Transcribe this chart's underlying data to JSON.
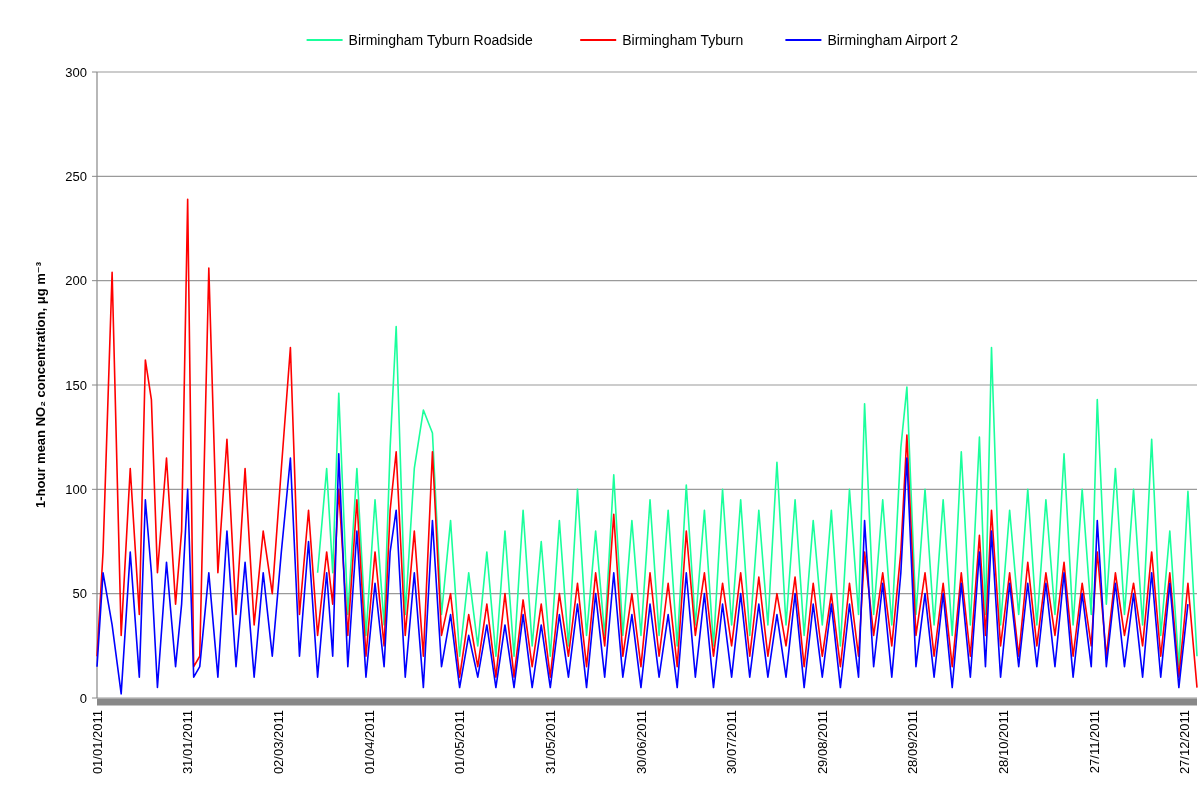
{
  "chart_data": {
    "type": "line",
    "ylabel": "1-hour mean NO₂ concentration, μg m⁻³",
    "x": [
      "2011-01-01",
      "2011-01-03",
      "2011-01-06",
      "2011-01-09",
      "2011-01-12",
      "2011-01-15",
      "2011-01-17",
      "2011-01-19",
      "2011-01-21",
      "2011-01-24",
      "2011-01-27",
      "2011-01-29",
      "2011-01-31",
      "2011-02-02",
      "2011-02-04",
      "2011-02-07",
      "2011-02-10",
      "2011-02-13",
      "2011-02-16",
      "2011-02-19",
      "2011-02-22",
      "2011-02-25",
      "2011-02-28",
      "2011-03-03",
      "2011-03-06",
      "2011-03-09",
      "2011-03-12",
      "2011-03-15",
      "2011-03-18",
      "2011-03-20",
      "2011-03-22",
      "2011-03-25",
      "2011-03-28",
      "2011-03-31",
      "2011-04-03",
      "2011-04-06",
      "2011-04-08",
      "2011-04-10",
      "2011-04-13",
      "2011-04-16",
      "2011-04-19",
      "2011-04-22",
      "2011-04-25",
      "2011-04-28",
      "2011-05-01",
      "2011-05-04",
      "2011-05-07",
      "2011-05-10",
      "2011-05-13",
      "2011-05-16",
      "2011-05-19",
      "2011-05-22",
      "2011-05-25",
      "2011-05-28",
      "2011-05-31",
      "2011-06-03",
      "2011-06-06",
      "2011-06-09",
      "2011-06-12",
      "2011-06-15",
      "2011-06-18",
      "2011-06-21",
      "2011-06-24",
      "2011-06-27",
      "2011-06-30",
      "2011-07-03",
      "2011-07-06",
      "2011-07-09",
      "2011-07-12",
      "2011-07-15",
      "2011-07-18",
      "2011-07-21",
      "2011-07-24",
      "2011-07-27",
      "2011-07-30",
      "2011-08-02",
      "2011-08-05",
      "2011-08-08",
      "2011-08-11",
      "2011-08-14",
      "2011-08-17",
      "2011-08-20",
      "2011-08-23",
      "2011-08-26",
      "2011-08-29",
      "2011-09-01",
      "2011-09-04",
      "2011-09-07",
      "2011-09-10",
      "2011-09-12",
      "2011-09-15",
      "2011-09-18",
      "2011-09-21",
      "2011-09-24",
      "2011-09-26",
      "2011-09-29",
      "2011-10-02",
      "2011-10-05",
      "2011-10-08",
      "2011-10-11",
      "2011-10-14",
      "2011-10-17",
      "2011-10-20",
      "2011-10-22",
      "2011-10-24",
      "2011-10-27",
      "2011-10-30",
      "2011-11-02",
      "2011-11-05",
      "2011-11-08",
      "2011-11-11",
      "2011-11-14",
      "2011-11-17",
      "2011-11-20",
      "2011-11-23",
      "2011-11-26",
      "2011-11-28",
      "2011-12-01",
      "2011-12-04",
      "2011-12-07",
      "2011-12-10",
      "2011-12-13",
      "2011-12-16",
      "2011-12-19",
      "2011-12-22",
      "2011-12-25",
      "2011-12-28",
      "2011-12-31"
    ],
    "series": [
      {
        "name": "Birmingham Tyburn Roadside",
        "color": "#1aff9c",
        "values": [
          null,
          null,
          null,
          null,
          null,
          null,
          null,
          null,
          null,
          null,
          null,
          null,
          null,
          null,
          null,
          null,
          null,
          null,
          null,
          null,
          null,
          null,
          null,
          null,
          null,
          null,
          null,
          60,
          110,
          60,
          146,
          40,
          110,
          30,
          95,
          35,
          120,
          178,
          40,
          110,
          138,
          127,
          40,
          85,
          20,
          60,
          25,
          70,
          20,
          80,
          20,
          90,
          25,
          75,
          20,
          85,
          25,
          100,
          30,
          80,
          30,
          107,
          30,
          85,
          30,
          95,
          30,
          90,
          25,
          102,
          35,
          90,
          25,
          100,
          35,
          95,
          30,
          90,
          35,
          113,
          35,
          95,
          30,
          85,
          35,
          90,
          25,
          100,
          40,
          141,
          40,
          95,
          35,
          120,
          149,
          40,
          100,
          35,
          95,
          30,
          118,
          35,
          125,
          40,
          168,
          35,
          90,
          40,
          100,
          35,
          95,
          40,
          117,
          35,
          100,
          40,
          143,
          45,
          110,
          40,
          100,
          35,
          124,
          30,
          80,
          15,
          99,
          20
        ]
      },
      {
        "name": "Birmingham Tyburn",
        "color": "#ff0000",
        "values": [
          20,
          70,
          204,
          30,
          110,
          40,
          162,
          143,
          60,
          115,
          45,
          80,
          239,
          15,
          20,
          206,
          60,
          124,
          40,
          110,
          35,
          80,
          50,
          110,
          168,
          40,
          90,
          30,
          70,
          45,
          100,
          30,
          95,
          20,
          70,
          25,
          90,
          118,
          30,
          80,
          20,
          118,
          30,
          50,
          10,
          40,
          15,
          45,
          10,
          50,
          10,
          47,
          15,
          45,
          10,
          50,
          20,
          55,
          15,
          60,
          25,
          88,
          20,
          50,
          15,
          60,
          20,
          55,
          15,
          80,
          30,
          60,
          20,
          55,
          25,
          60,
          20,
          58,
          20,
          50,
          25,
          58,
          15,
          55,
          20,
          50,
          15,
          55,
          20,
          70,
          30,
          60,
          25,
          70,
          126,
          30,
          60,
          20,
          55,
          15,
          60,
          20,
          78,
          30,
          90,
          25,
          60,
          20,
          65,
          25,
          60,
          30,
          65,
          20,
          55,
          25,
          70,
          20,
          60,
          30,
          55,
          25,
          70,
          20,
          60,
          10,
          55,
          5
        ]
      },
      {
        "name": "Birmingham Airport 2",
        "color": "#0000ff",
        "values": [
          15,
          60,
          35,
          2,
          70,
          10,
          95,
          60,
          5,
          65,
          15,
          45,
          100,
          10,
          15,
          60,
          10,
          80,
          15,
          65,
          10,
          60,
          20,
          70,
          115,
          20,
          75,
          10,
          60,
          20,
          117,
          15,
          80,
          10,
          55,
          15,
          70,
          90,
          10,
          60,
          5,
          85,
          15,
          40,
          5,
          30,
          10,
          35,
          5,
          35,
          5,
          40,
          5,
          35,
          5,
          40,
          10,
          45,
          5,
          50,
          10,
          60,
          10,
          40,
          5,
          45,
          10,
          40,
          5,
          60,
          10,
          50,
          5,
          45,
          10,
          50,
          10,
          45,
          10,
          40,
          10,
          50,
          5,
          45,
          10,
          45,
          5,
          45,
          10,
          85,
          15,
          55,
          10,
          60,
          115,
          15,
          50,
          10,
          50,
          5,
          55,
          10,
          70,
          15,
          80,
          10,
          55,
          15,
          55,
          15,
          55,
          15,
          60,
          10,
          50,
          15,
          85,
          15,
          55,
          15,
          50,
          10,
          60,
          10,
          55,
          5,
          45,
          null
        ]
      }
    ],
    "xlim": [
      "2011-01-01",
      "2011-12-31"
    ],
    "xticks": [
      {
        "value": "2011-01-01",
        "label": "01/01/2011"
      },
      {
        "value": "2011-01-31",
        "label": "31/01/2011"
      },
      {
        "value": "2011-03-02",
        "label": "02/03/2011"
      },
      {
        "value": "2011-04-01",
        "label": "01/04/2011"
      },
      {
        "value": "2011-05-01",
        "label": "01/05/2011"
      },
      {
        "value": "2011-05-31",
        "label": "31/05/2011"
      },
      {
        "value": "2011-06-30",
        "label": "30/06/2011"
      },
      {
        "value": "2011-07-30",
        "label": "30/07/2011"
      },
      {
        "value": "2011-08-29",
        "label": "29/08/2011"
      },
      {
        "value": "2011-09-28",
        "label": "28/09/2011"
      },
      {
        "value": "2011-10-28",
        "label": "28/10/2011"
      },
      {
        "value": "2011-11-27",
        "label": "27/11/2011"
      },
      {
        "value": "2011-12-27",
        "label": "27/12/2011"
      }
    ],
    "ylim": [
      0,
      300
    ],
    "yticks": [
      0,
      50,
      100,
      150,
      200,
      250,
      300
    ],
    "grid": "y",
    "legend": "top",
    "marker": "none",
    "line_style": "solid"
  }
}
